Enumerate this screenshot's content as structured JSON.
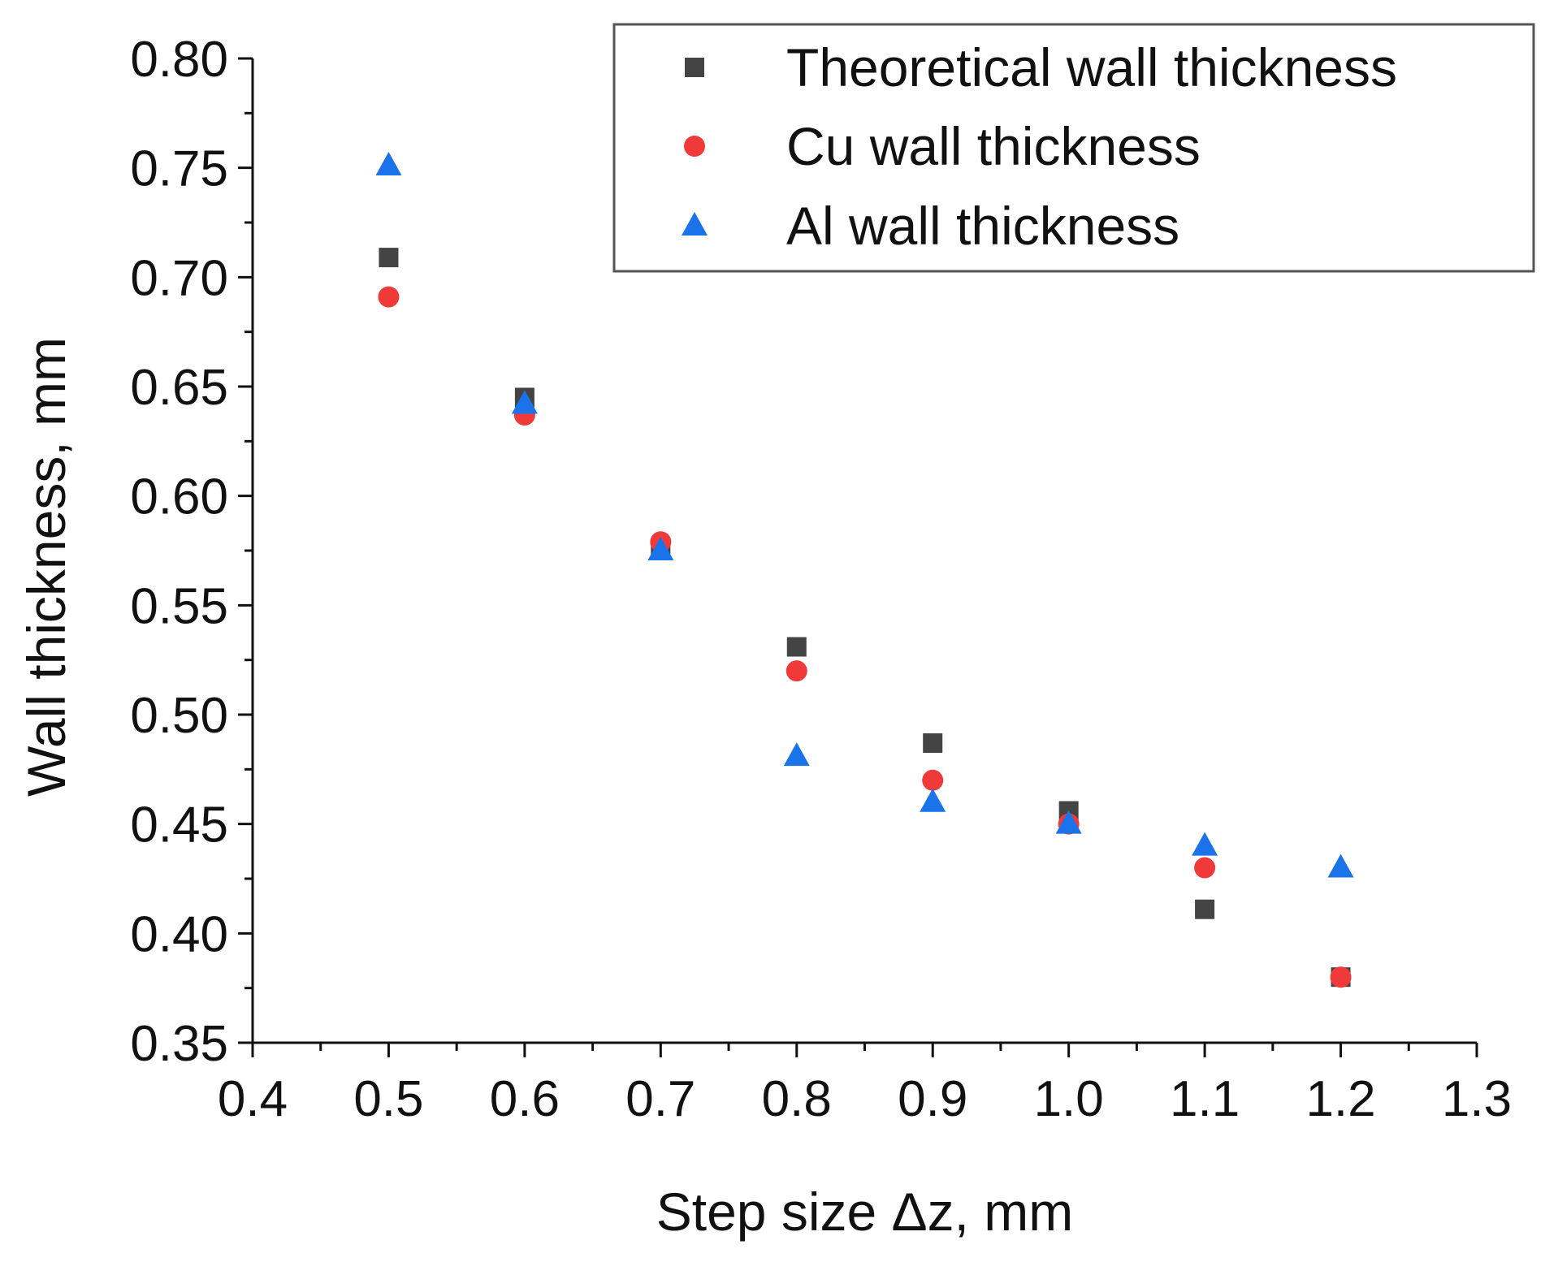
{
  "chart_data": {
    "type": "scatter",
    "title": "",
    "xlabel": "Step size Δz, mm",
    "ylabel": "Wall thickness, mm",
    "xlim": [
      0.4,
      1.3
    ],
    "ylim": [
      0.35,
      0.8
    ],
    "xticks": [
      "0.4",
      "0.5",
      "0.6",
      "0.7",
      "0.8",
      "0.9",
      "1.0",
      "1.1",
      "1.2",
      "1.3"
    ],
    "yticks": [
      "0.35",
      "0.40",
      "0.45",
      "0.50",
      "0.55",
      "0.60",
      "0.65",
      "0.70",
      "0.75",
      "0.80"
    ],
    "grid": false,
    "legend_position": "top-right",
    "series": [
      {
        "name": "Theoretical wall thickness",
        "marker": "square",
        "color": "#444444",
        "x": [
          0.5,
          0.6,
          0.7,
          0.8,
          0.9,
          1.0,
          1.1,
          1.2
        ],
        "y": [
          0.709,
          0.645,
          0.576,
          0.531,
          0.487,
          0.456,
          0.411,
          0.38
        ]
      },
      {
        "name": "Cu wall thickness",
        "marker": "circle",
        "color": "#f03a3a",
        "x": [
          0.5,
          0.6,
          0.7,
          0.8,
          0.9,
          1.0,
          1.1,
          1.2
        ],
        "y": [
          0.691,
          0.637,
          0.579,
          0.52,
          0.47,
          0.45,
          0.43,
          0.38
        ]
      },
      {
        "name": "Al wall thickness",
        "marker": "triangle",
        "color": "#1a73e8",
        "x": [
          0.5,
          0.6,
          0.7,
          0.8,
          0.9,
          1.0,
          1.1,
          1.2
        ],
        "y": [
          0.751,
          0.642,
          0.575,
          0.481,
          0.46,
          0.45,
          0.44,
          0.43
        ]
      }
    ]
  }
}
